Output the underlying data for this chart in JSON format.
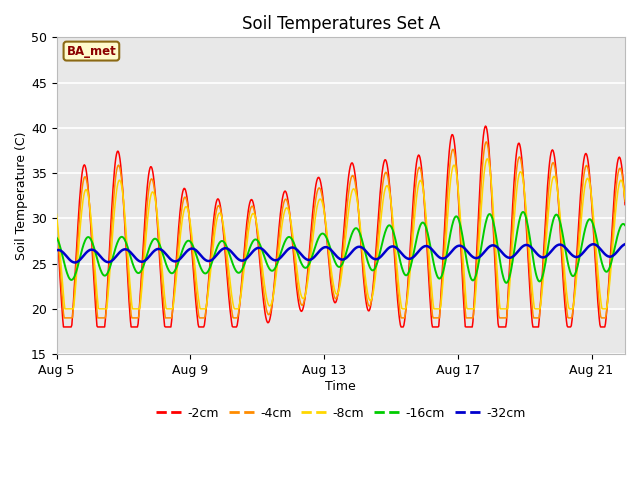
{
  "title": "Soil Temperatures Set A",
  "xlabel": "Time",
  "ylabel": "Soil Temperature (C)",
  "ylim": [
    15,
    50
  ],
  "xlim_days": [
    0,
    17
  ],
  "xtick_positions": [
    0,
    4,
    8,
    12,
    16
  ],
  "xtick_labels": [
    "Aug 5",
    "Aug 9",
    "Aug 13",
    "Aug 17",
    "Aug 21"
  ],
  "ytick_positions": [
    15,
    20,
    25,
    30,
    35,
    40,
    45,
    50
  ],
  "annotation_text": "BA_met",
  "colors": {
    "2cm": "#FF0000",
    "4cm": "#FF8C00",
    "8cm": "#FFD700",
    "16cm": "#00CC00",
    "32cm": "#0000CD"
  },
  "legend_labels": [
    "-2cm",
    "-4cm",
    "-8cm",
    "-16cm",
    "-32cm"
  ],
  "background_color": "#FFFFFF",
  "plot_bg_color": "#E8E8E8",
  "grid_color": "#FFFFFF",
  "title_fontsize": 12,
  "axis_fontsize": 9,
  "tick_fontsize": 9
}
